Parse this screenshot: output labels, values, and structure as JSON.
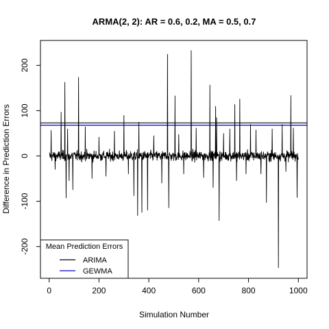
{
  "chart_data": {
    "type": "line",
    "title": "ARMA(2, 2): AR = 0.6, 0.2, MA = 0.5, 0.7",
    "xlabel": "Simulation Number",
    "ylabel": "Difference in Prediction Errors",
    "xlim": [
      -35,
      1035
    ],
    "ylim": [
      -270,
      255
    ],
    "x_ticks": [
      0,
      200,
      400,
      600,
      800,
      1000
    ],
    "y_ticks": [
      -200,
      -100,
      0,
      100,
      200
    ],
    "x_tick_labels": [
      "0",
      "200",
      "400",
      "600",
      "800",
      "1000"
    ],
    "y_tick_labels": [
      "-200",
      "-100",
      "0",
      "100",
      "200"
    ],
    "grid": false,
    "series": [
      {
        "name": "",
        "color": "#000000",
        "n": 1000,
        "x_start": 1,
        "x_end": 1000,
        "baseline_noise_sd": 8,
        "spikes": [
          {
            "x": 8,
            "y": 57
          },
          {
            "x": 24,
            "y": -30
          },
          {
            "x": 48,
            "y": 97
          },
          {
            "x": 63,
            "y": 163
          },
          {
            "x": 68,
            "y": -93
          },
          {
            "x": 74,
            "y": 60
          },
          {
            "x": 80,
            "y": -55
          },
          {
            "x": 95,
            "y": -75
          },
          {
            "x": 118,
            "y": 174
          },
          {
            "x": 145,
            "y": 65
          },
          {
            "x": 172,
            "y": -50
          },
          {
            "x": 200,
            "y": 42
          },
          {
            "x": 228,
            "y": -45
          },
          {
            "x": 262,
            "y": 55
          },
          {
            "x": 300,
            "y": 90
          },
          {
            "x": 318,
            "y": -40
          },
          {
            "x": 340,
            "y": -88
          },
          {
            "x": 355,
            "y": -132
          },
          {
            "x": 360,
            "y": 75
          },
          {
            "x": 372,
            "y": -125
          },
          {
            "x": 395,
            "y": -120
          },
          {
            "x": 420,
            "y": 45
          },
          {
            "x": 452,
            "y": -60
          },
          {
            "x": 475,
            "y": 225
          },
          {
            "x": 480,
            "y": -115
          },
          {
            "x": 505,
            "y": 133
          },
          {
            "x": 520,
            "y": 48
          },
          {
            "x": 540,
            "y": -40
          },
          {
            "x": 570,
            "y": 233
          },
          {
            "x": 590,
            "y": 62
          },
          {
            "x": 620,
            "y": -48
          },
          {
            "x": 645,
            "y": 157
          },
          {
            "x": 658,
            "y": -70
          },
          {
            "x": 668,
            "y": 110
          },
          {
            "x": 672,
            "y": 85
          },
          {
            "x": 682,
            "y": -143
          },
          {
            "x": 700,
            "y": 50
          },
          {
            "x": 725,
            "y": 60
          },
          {
            "x": 745,
            "y": 114
          },
          {
            "x": 752,
            "y": -55
          },
          {
            "x": 765,
            "y": 126
          },
          {
            "x": 790,
            "y": -40
          },
          {
            "x": 808,
            "y": 70
          },
          {
            "x": 830,
            "y": 58
          },
          {
            "x": 850,
            "y": -40
          },
          {
            "x": 872,
            "y": -103
          },
          {
            "x": 895,
            "y": 60
          },
          {
            "x": 920,
            "y": -247
          },
          {
            "x": 935,
            "y": 70
          },
          {
            "x": 950,
            "y": -35
          },
          {
            "x": 970,
            "y": 134
          },
          {
            "x": 980,
            "y": 62
          },
          {
            "x": 995,
            "y": -92
          }
        ]
      }
    ],
    "hlines": [
      {
        "name": "ARIMA",
        "y": 73,
        "color": "#000000"
      },
      {
        "name": "GEWMA",
        "y": 68,
        "color": "#0000cd"
      }
    ],
    "legend": {
      "title": "Mean Prediction Errors",
      "position": "bottom-left",
      "entries": [
        {
          "label": "ARIMA",
          "color": "#000000"
        },
        {
          "label": "GEWMA",
          "color": "#0000cd"
        }
      ]
    }
  }
}
